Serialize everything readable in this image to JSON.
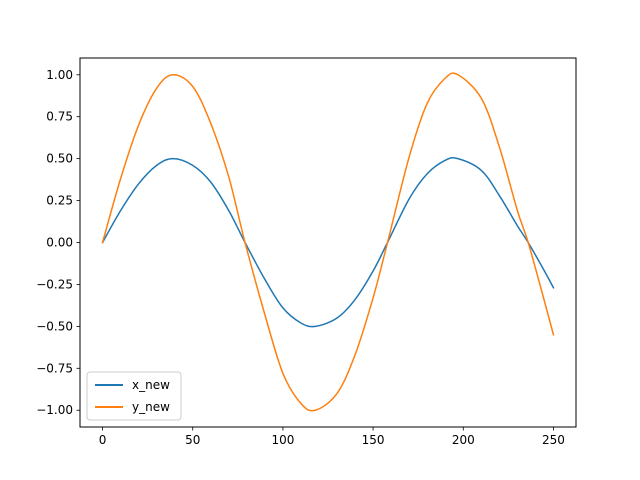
{
  "chart_data": {
    "type": "line",
    "title": "",
    "xlabel": "",
    "ylabel": "",
    "xlim": [
      -12.5,
      262.5
    ],
    "ylim": [
      -1.1,
      1.1
    ],
    "x_ticks": [
      0,
      50,
      100,
      150,
      200,
      250
    ],
    "x_tick_labels": [
      "0",
      "50",
      "100",
      "150",
      "200",
      "250"
    ],
    "y_ticks": [
      -1.0,
      -0.75,
      -0.5,
      -0.25,
      0.0,
      0.25,
      0.5,
      0.75,
      1.0
    ],
    "y_tick_labels": [
      "−1.00",
      "−0.75",
      "−0.50",
      "−0.25",
      "0.00",
      "0.25",
      "0.50",
      "0.75",
      "1.00"
    ],
    "grid": false,
    "legend": {
      "location": "lower left"
    },
    "series": [
      {
        "name": "x_new",
        "color": "#1f77b4",
        "points": [
          [
            0,
            0.0
          ],
          [
            10,
            0.19
          ],
          [
            20,
            0.35
          ],
          [
            30,
            0.46
          ],
          [
            39,
            0.5
          ],
          [
            50,
            0.46
          ],
          [
            60,
            0.36
          ],
          [
            70,
            0.19
          ],
          [
            79,
            0.0
          ],
          [
            90,
            -0.22
          ],
          [
            100,
            -0.39
          ],
          [
            110,
            -0.48
          ],
          [
            118,
            -0.5
          ],
          [
            130,
            -0.45
          ],
          [
            140,
            -0.34
          ],
          [
            150,
            -0.17
          ],
          [
            158,
            0.0
          ],
          [
            170,
            0.26
          ],
          [
            180,
            0.41
          ],
          [
            190,
            0.49
          ],
          [
            197,
            0.5
          ],
          [
            210,
            0.43
          ],
          [
            220,
            0.28
          ],
          [
            230,
            0.1
          ],
          [
            236,
            0.0
          ],
          [
            245,
            -0.17
          ],
          [
            250,
            -0.27
          ]
        ]
      },
      {
        "name": "y_new",
        "color": "#ff7f0e",
        "points": [
          [
            0,
            0.0
          ],
          [
            10,
            0.38
          ],
          [
            20,
            0.7
          ],
          [
            30,
            0.92
          ],
          [
            39,
            1.0
          ],
          [
            50,
            0.93
          ],
          [
            60,
            0.71
          ],
          [
            70,
            0.39
          ],
          [
            79,
            0.0
          ],
          [
            90,
            -0.43
          ],
          [
            100,
            -0.78
          ],
          [
            110,
            -0.96
          ],
          [
            118,
            -1.0
          ],
          [
            130,
            -0.9
          ],
          [
            140,
            -0.67
          ],
          [
            150,
            -0.33
          ],
          [
            158,
            0.0
          ],
          [
            170,
            0.51
          ],
          [
            180,
            0.83
          ],
          [
            190,
            0.98
          ],
          [
            197,
            1.0
          ],
          [
            210,
            0.86
          ],
          [
            220,
            0.57
          ],
          [
            230,
            0.19
          ],
          [
            236,
            0.0
          ],
          [
            245,
            -0.35
          ],
          [
            250,
            -0.55
          ]
        ]
      }
    ]
  }
}
